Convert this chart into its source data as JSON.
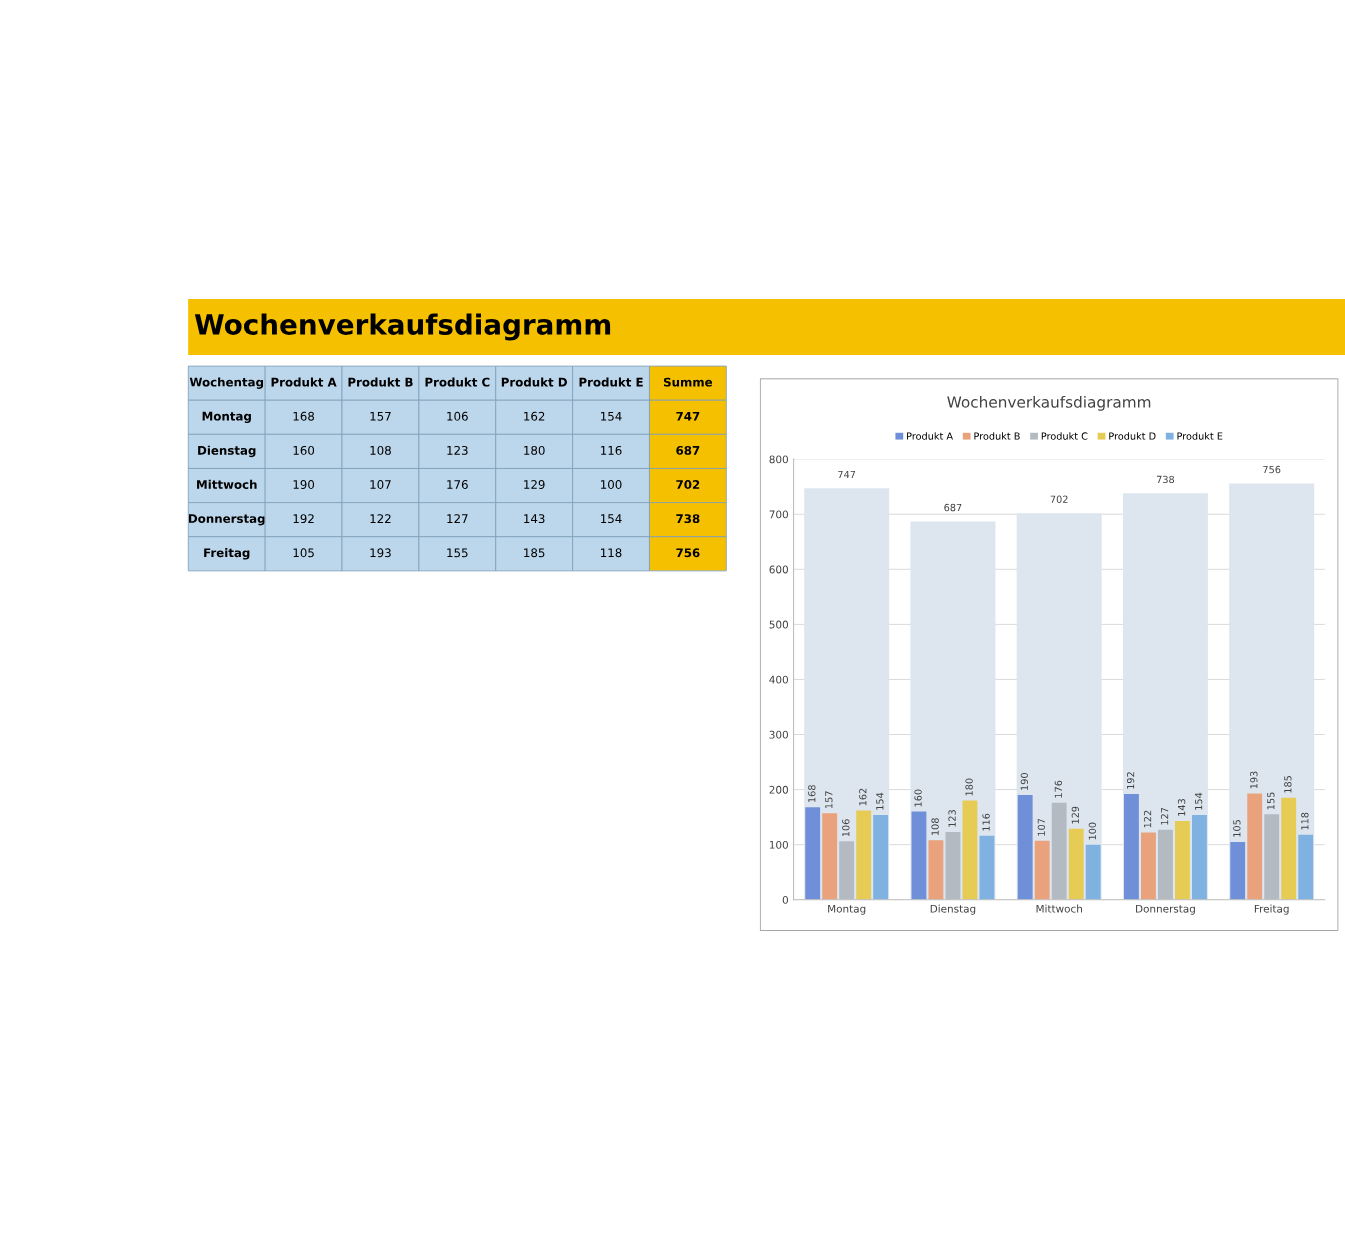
{
  "chart_data": {
    "type": "bar",
    "title": "Wochenverkaufsdiagramm",
    "annotations": [
      "Wochentag",
      "Summe",
      "168",
      "157",
      "106",
      "162",
      "154",
      "747",
      "160",
      "108",
      "123",
      "180",
      "116",
      "687",
      "190",
      "107",
      "176",
      "129",
      "100",
      "702",
      "192",
      "122",
      "127",
      "143",
      "154",
      "738",
      "105",
      "193",
      "155",
      "185",
      "118",
      "756"
    ],
    "categories": [
      "Montag",
      "Dienstag",
      "Mittwoch",
      "Donnerstag",
      "Freitag"
    ],
    "series": [
      {
        "name": "Produkt A",
        "color": "#6f8fd8",
        "values": [
          168,
          160,
          190,
          192,
          105
        ]
      },
      {
        "name": "Produkt B",
        "color": "#e9a27c",
        "values": [
          157,
          108,
          107,
          122,
          193
        ]
      },
      {
        "name": "Produkt C",
        "color": "#b4bac2",
        "values": [
          106,
          123,
          176,
          127,
          155
        ]
      },
      {
        "name": "Produkt D",
        "color": "#e6cb55",
        "values": [
          162,
          180,
          129,
          143,
          185
        ]
      },
      {
        "name": "Produkt E",
        "color": "#7fb2e0",
        "values": [
          154,
          116,
          100,
          154,
          118
        ]
      },
      {
        "color": "#dde6ef",
        "values": [
          747,
          687,
          702,
          738,
          756
        ]
      }
    ],
    "ylim": [
      0,
      800
    ],
    "yticks": [
      0,
      100,
      200,
      300,
      400,
      500,
      600,
      700,
      800
    ],
    "grid": "y",
    "legend": "top",
    "data_labels": true
  }
}
